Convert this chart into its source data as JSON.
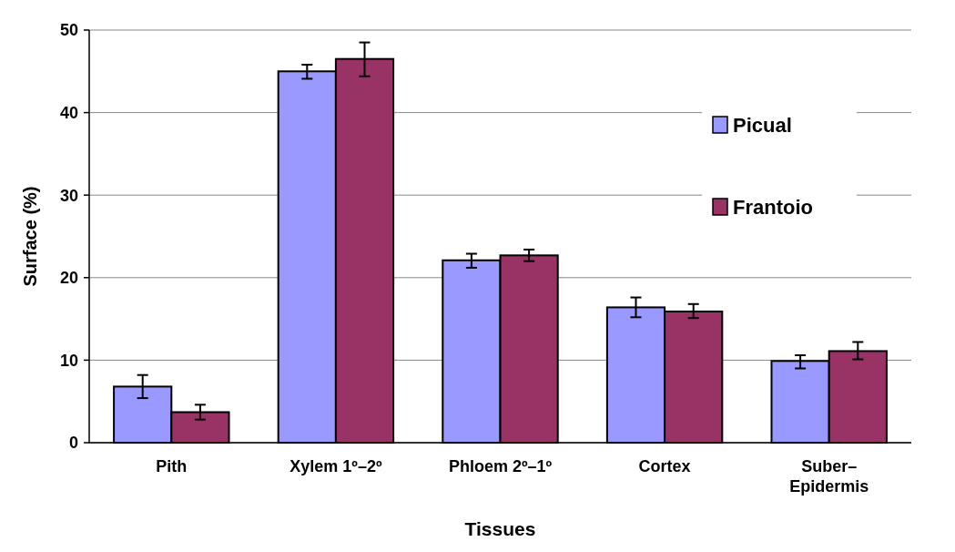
{
  "chart_data": {
    "type": "bar",
    "xlabel": "Tissues",
    "ylabel": "Surface (%)",
    "categories": [
      "Pith",
      "Xylem 1º–2º",
      "Phloem 2º–1º",
      "Cortex",
      "Suber–Epidermis"
    ],
    "series": [
      {
        "name": "Picual",
        "color": "#9999ff",
        "values": [
          6.8,
          45.0,
          22.1,
          16.4,
          9.9
        ],
        "errors": [
          [
            5.4,
            8.2
          ],
          [
            44.1,
            45.8
          ],
          [
            21.2,
            22.9
          ],
          [
            15.2,
            17.6
          ],
          [
            9.0,
            10.6
          ]
        ]
      },
      {
        "name": "Frantoio",
        "color": "#993366",
        "values": [
          3.7,
          46.5,
          22.7,
          15.9,
          11.1
        ],
        "errors": [
          [
            2.8,
            4.6
          ],
          [
            44.4,
            48.5
          ],
          [
            22.0,
            23.4
          ],
          [
            15.1,
            16.8
          ],
          [
            10.1,
            12.2
          ]
        ]
      }
    ],
    "ylim": [
      0,
      50
    ],
    "yticks": [
      0,
      10,
      20,
      30,
      40,
      50
    ],
    "grid": "y",
    "legend": "top right"
  }
}
